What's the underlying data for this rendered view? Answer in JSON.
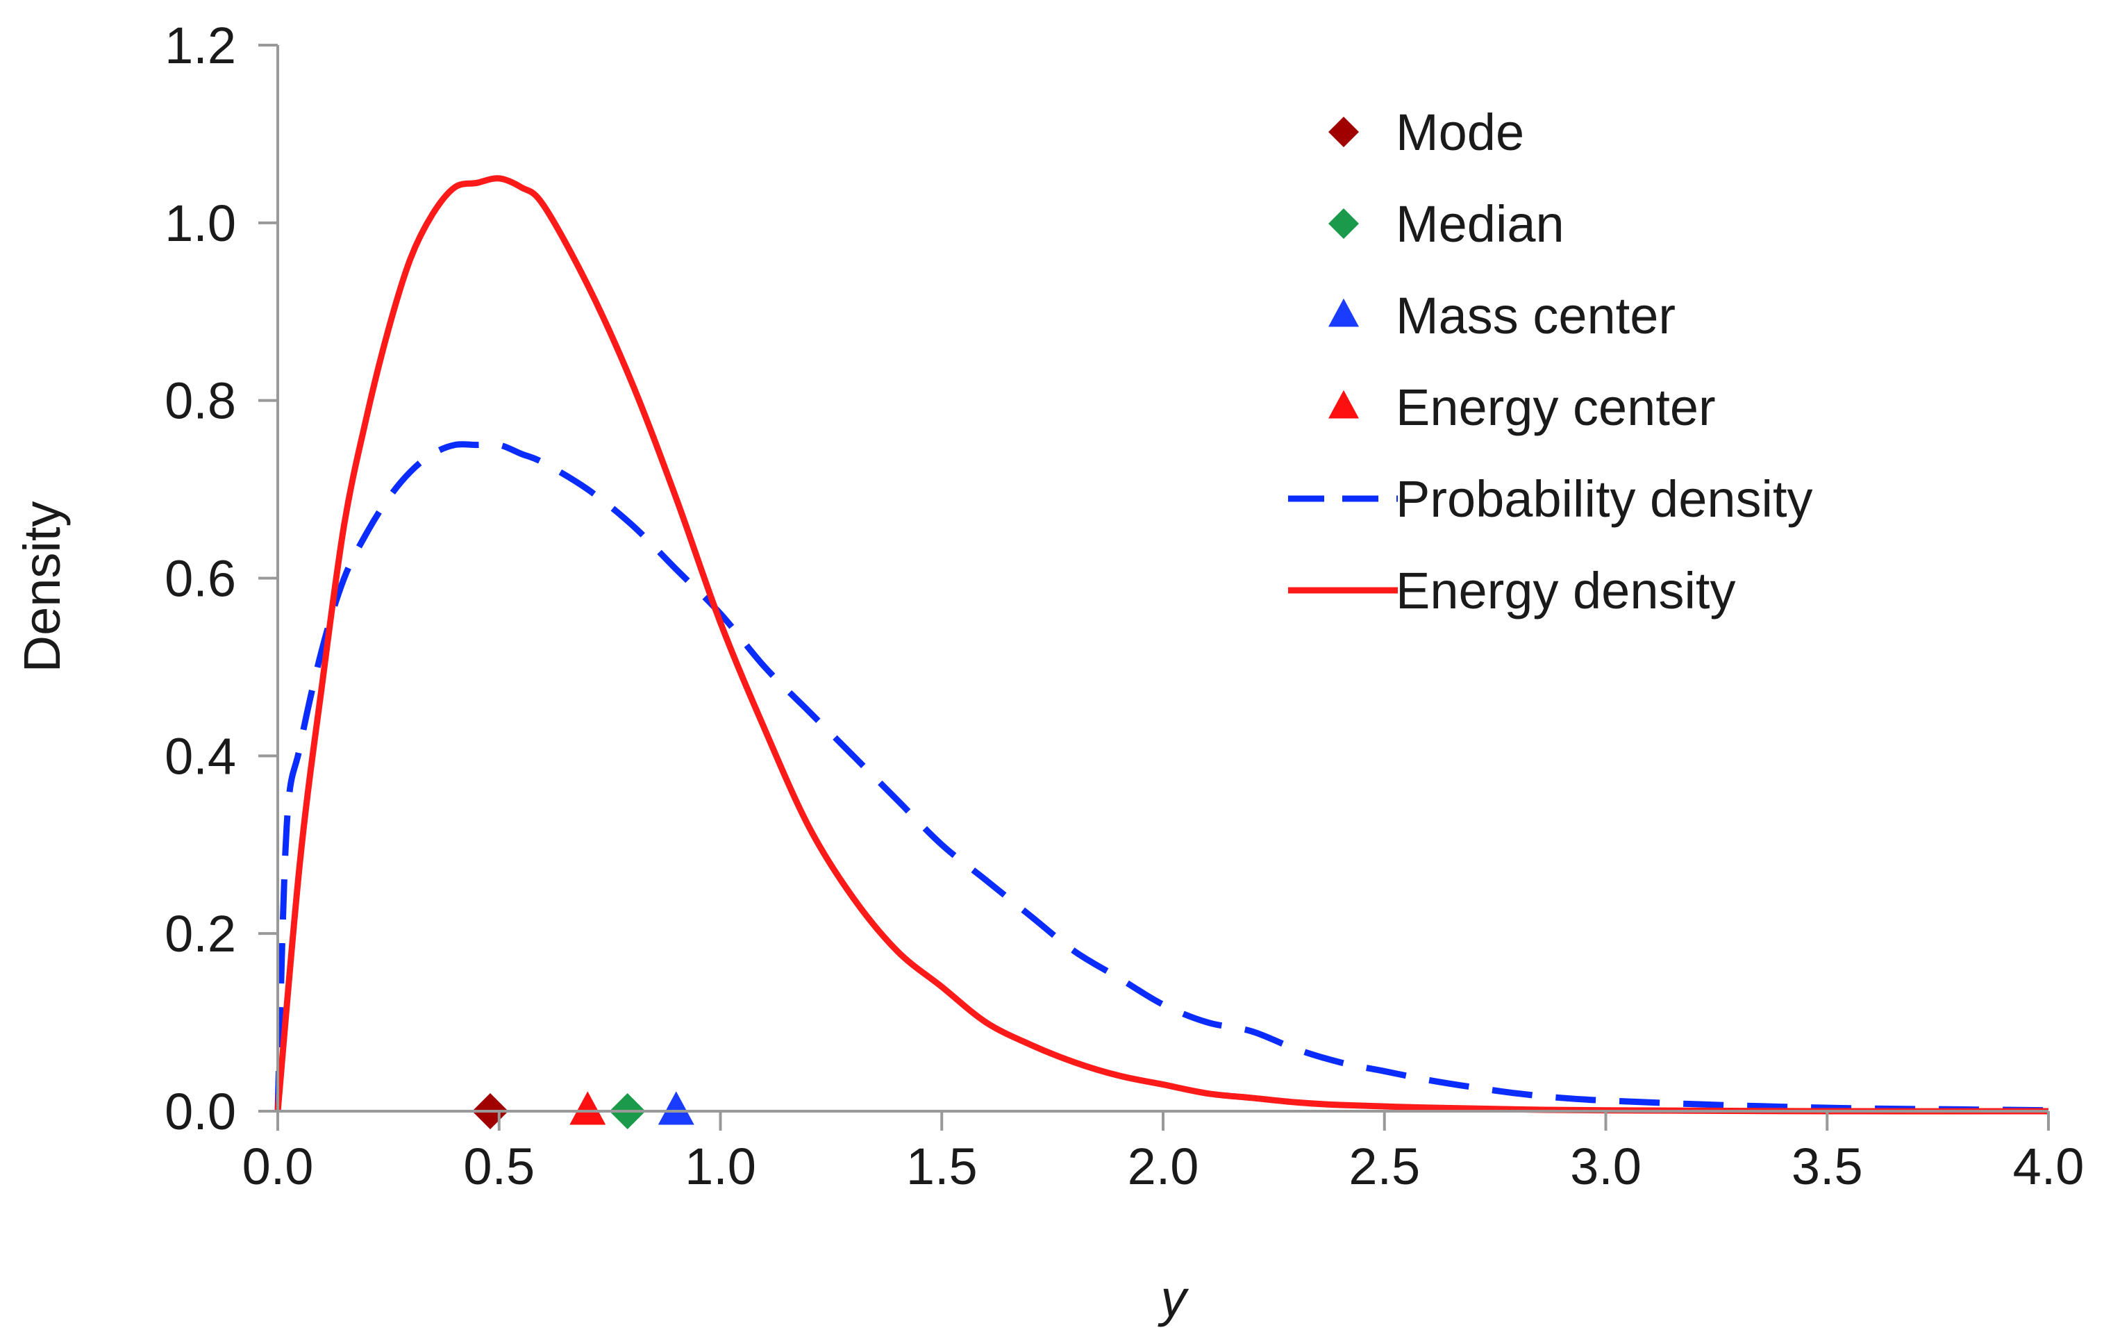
{
  "chart_data": {
    "type": "line",
    "xlabel": "y",
    "ylabel": "Density",
    "xlim": [
      0,
      4
    ],
    "ylim": [
      0,
      1.2
    ],
    "xticks": [
      "0.0",
      "0.5",
      "1.0",
      "1.5",
      "2.0",
      "2.5",
      "3.0",
      "3.5",
      "4.0"
    ],
    "yticks": [
      "0.0",
      "0.2",
      "0.4",
      "0.6",
      "0.8",
      "1.0",
      "1.2"
    ],
    "grid": false,
    "legend_position": "top-right",
    "series": [
      {
        "name": "Probability density",
        "kind": "line",
        "style": "dashed",
        "color": "#0a2cff",
        "x": [
          0,
          0.02,
          0.05,
          0.1,
          0.15,
          0.2,
          0.25,
          0.3,
          0.35,
          0.4,
          0.45,
          0.5,
          0.55,
          0.6,
          0.7,
          0.8,
          0.9,
          1.0,
          1.1,
          1.2,
          1.3,
          1.4,
          1.5,
          1.6,
          1.7,
          1.8,
          1.9,
          2.0,
          2.1,
          2.2,
          2.3,
          2.4,
          2.5,
          2.6,
          2.7,
          2.8,
          2.9,
          3.0,
          3.2,
          3.4,
          3.6,
          3.8,
          4.0
        ],
        "y": [
          0.0,
          0.32,
          0.41,
          0.52,
          0.6,
          0.65,
          0.69,
          0.72,
          0.74,
          0.75,
          0.75,
          0.75,
          0.74,
          0.73,
          0.7,
          0.66,
          0.61,
          0.56,
          0.5,
          0.45,
          0.4,
          0.35,
          0.3,
          0.26,
          0.22,
          0.18,
          0.15,
          0.12,
          0.1,
          0.09,
          0.07,
          0.055,
          0.045,
          0.035,
          0.027,
          0.02,
          0.015,
          0.012,
          0.008,
          0.005,
          0.003,
          0.002,
          0.001
        ]
      },
      {
        "name": "Energy density",
        "kind": "line",
        "style": "solid",
        "color": "#ff1a1a",
        "x": [
          0,
          0.05,
          0.1,
          0.15,
          0.2,
          0.25,
          0.3,
          0.35,
          0.4,
          0.45,
          0.5,
          0.55,
          0.6,
          0.7,
          0.8,
          0.9,
          1.0,
          1.1,
          1.2,
          1.3,
          1.4,
          1.5,
          1.6,
          1.7,
          1.8,
          1.9,
          2.0,
          2.1,
          2.2,
          2.3,
          2.4,
          2.6,
          2.8,
          3.0,
          3.5,
          4.0
        ],
        "y": [
          0.0,
          0.28,
          0.48,
          0.66,
          0.78,
          0.88,
          0.96,
          1.01,
          1.04,
          1.045,
          1.05,
          1.04,
          1.02,
          0.93,
          0.82,
          0.69,
          0.55,
          0.43,
          0.32,
          0.24,
          0.18,
          0.14,
          0.1,
          0.075,
          0.055,
          0.04,
          0.03,
          0.02,
          0.015,
          0.01,
          0.007,
          0.004,
          0.002,
          0.001,
          0.0,
          0.0
        ]
      },
      {
        "name": "Mode",
        "kind": "marker",
        "marker": "diamond",
        "color": "#a00000",
        "x": [
          0.48
        ],
        "y": [
          0
        ]
      },
      {
        "name": "Median",
        "kind": "marker",
        "marker": "diamond",
        "color": "#1a9a4a",
        "x": [
          0.79
        ],
        "y": [
          0
        ]
      },
      {
        "name": "Mass center",
        "kind": "marker",
        "marker": "triangle",
        "color": "#1a3cff",
        "x": [
          0.9
        ],
        "y": [
          0
        ]
      },
      {
        "name": "Energy center",
        "kind": "marker",
        "marker": "triangle",
        "color": "#ff1010",
        "x": [
          0.7
        ],
        "y": [
          0
        ]
      }
    ],
    "legend_order": [
      "Mode",
      "Median",
      "Mass center",
      "Energy center",
      "Probability density",
      "Energy density"
    ]
  }
}
